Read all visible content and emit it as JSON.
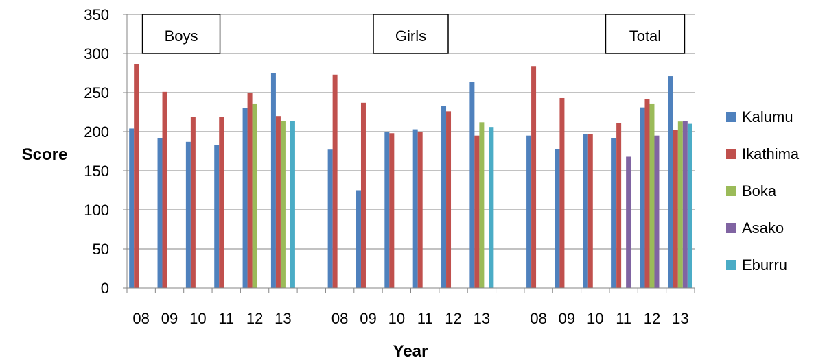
{
  "chart_data": {
    "type": "bar",
    "xlabel": "Year",
    "ylabel": "Score",
    "ylim": [
      0,
      350
    ],
    "yticks": [
      0,
      50,
      100,
      150,
      200,
      250,
      300,
      350
    ],
    "grid": true,
    "legend_position": "right",
    "groups": [
      {
        "label": "Boys",
        "categories": [
          "08",
          "09",
          "10",
          "11",
          "12",
          "13"
        ],
        "series": [
          {
            "name": "Kalumu",
            "values": [
              204,
              192,
              187,
              183,
              230,
              275
            ]
          },
          {
            "name": "Ikathima",
            "values": [
              286,
              251,
              219,
              219,
              250,
              220
            ]
          },
          {
            "name": "Boka",
            "values": [
              null,
              null,
              null,
              null,
              236,
              214
            ]
          },
          {
            "name": "Asako",
            "values": [
              null,
              null,
              null,
              null,
              null,
              null
            ]
          },
          {
            "name": "Eburru",
            "values": [
              null,
              null,
              null,
              null,
              null,
              214
            ]
          }
        ]
      },
      {
        "label": "Girls",
        "categories": [
          "08",
          "09",
          "10",
          "11",
          "12",
          "13"
        ],
        "series": [
          {
            "name": "Kalumu",
            "values": [
              177,
              125,
              200,
              203,
              233,
              264
            ]
          },
          {
            "name": "Ikathima",
            "values": [
              273,
              237,
              198,
              200,
              226,
              195
            ]
          },
          {
            "name": "Boka",
            "values": [
              null,
              null,
              null,
              null,
              null,
              212
            ]
          },
          {
            "name": "Asako",
            "values": [
              null,
              null,
              null,
              null,
              null,
              null
            ]
          },
          {
            "name": "Eburru",
            "values": [
              null,
              null,
              null,
              null,
              null,
              206
            ]
          }
        ]
      },
      {
        "label": "Total",
        "categories": [
          "08",
          "09",
          "10",
          "11",
          "12",
          "13"
        ],
        "series": [
          {
            "name": "Kalumu",
            "values": [
              195,
              178,
              197,
              192,
              231,
              271
            ]
          },
          {
            "name": "Ikathima",
            "values": [
              284,
              243,
              197,
              211,
              242,
              202
            ]
          },
          {
            "name": "Boka",
            "values": [
              null,
              null,
              null,
              null,
              236,
              213
            ]
          },
          {
            "name": "Asako",
            "values": [
              null,
              null,
              null,
              168,
              195,
              214
            ]
          },
          {
            "name": "Eburru",
            "values": [
              null,
              null,
              null,
              null,
              null,
              210
            ]
          }
        ]
      }
    ],
    "series_colors": {
      "Kalumu": "#4F81BD",
      "Ikathima": "#C0504D",
      "Boka": "#9BBB59",
      "Asako": "#8064A2",
      "Eburru": "#4BACC6"
    },
    "legend": [
      "Kalumu",
      "Ikathima",
      "Boka",
      "Asako",
      "Eburru"
    ]
  }
}
